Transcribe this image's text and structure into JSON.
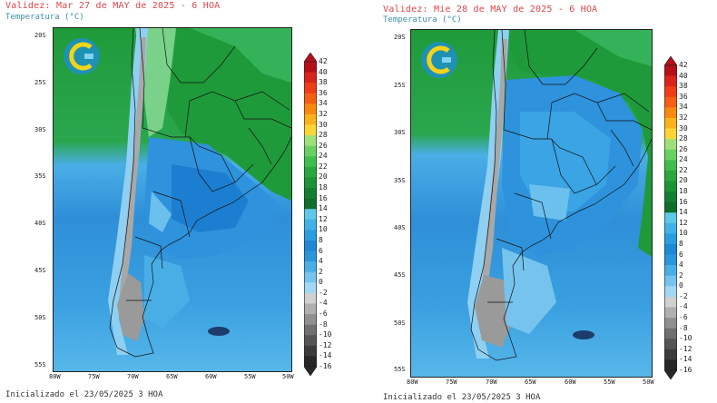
{
  "panels": [
    {
      "title": "Validez: Mar 27 de MAY de 2025 - 6 HOA",
      "subtitle": "Temperatura (°C)",
      "footer": "Inicializado el 23/05/2025 3 HOA"
    },
    {
      "title": "Validez: Mie 28 de MAY de 2025 - 6 HOA",
      "subtitle": "Temperatura (°C)",
      "footer": "Inicializado el 23/05/2025 3 HOA"
    }
  ],
  "lat_labels": [
    "20S",
    "25S",
    "30S",
    "35S",
    "40S",
    "45S",
    "50S",
    "55S"
  ],
  "lon_labels": [
    "80W",
    "75W",
    "70W",
    "65W",
    "60W",
    "55W",
    "50W"
  ],
  "colorbar": {
    "levels": [
      "42",
      "40",
      "38",
      "36",
      "34",
      "32",
      "30",
      "28",
      "26",
      "24",
      "22",
      "20",
      "18",
      "16",
      "14",
      "12",
      "10",
      "8",
      "6",
      "4",
      "2",
      "0",
      "-2",
      "-4",
      "-6",
      "-8",
      "-10",
      "-12",
      "-14",
      "-16"
    ],
    "colors": [
      "#b5101a",
      "#d8241a",
      "#ef3d18",
      "#f55e14",
      "#f88a12",
      "#fbb31c",
      "#fcd636",
      "#9ee07a",
      "#69d062",
      "#3fbe4c",
      "#28a83e",
      "#1a9436",
      "#128030",
      "#0e6e2a",
      "#60c8e8",
      "#40b2e8",
      "#2a9ce0",
      "#1e88d6",
      "#2a96dc",
      "#4aaee6",
      "#76c4ee",
      "#a2d8f4",
      "#d0d0d0",
      "#b0b0b0",
      "#909090",
      "#707070",
      "#555555",
      "#3c3c3c",
      "#282828"
    ]
  }
}
